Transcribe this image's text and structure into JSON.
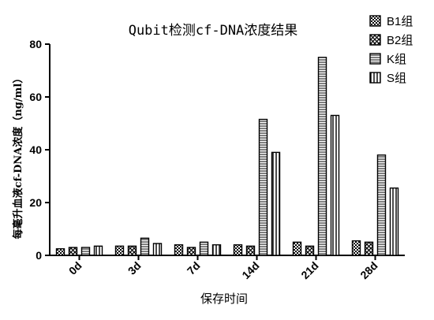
{
  "chart_data": {
    "type": "bar",
    "title": "Qubit检测cf-DNA浓度结果",
    "xlabel": "保存时间",
    "ylabel": "每毫升血液cf-DNA浓度（ng/ml）",
    "ylim": [
      0,
      80
    ],
    "yticks": [
      "0",
      "20",
      "40",
      "60",
      "80"
    ],
    "categories": [
      "0d",
      "3d",
      "7d",
      "14d",
      "21d",
      "28d"
    ],
    "legend_position": "top-right",
    "series": [
      {
        "name": "B1组",
        "pattern": "checker",
        "values": [
          2.5,
          3.5,
          4.0,
          4.0,
          5.0,
          5.5
        ]
      },
      {
        "name": "B2组",
        "pattern": "crosshatch",
        "values": [
          3.0,
          3.5,
          3.0,
          3.5,
          3.5,
          5.0
        ]
      },
      {
        "name": "K组",
        "pattern": "horizontal",
        "values": [
          3.0,
          6.5,
          5.0,
          51.5,
          75.0,
          38.0
        ]
      },
      {
        "name": "S组",
        "pattern": "vertical",
        "values": [
          3.5,
          4.5,
          4.0,
          39.0,
          53.0,
          25.5
        ]
      }
    ]
  }
}
